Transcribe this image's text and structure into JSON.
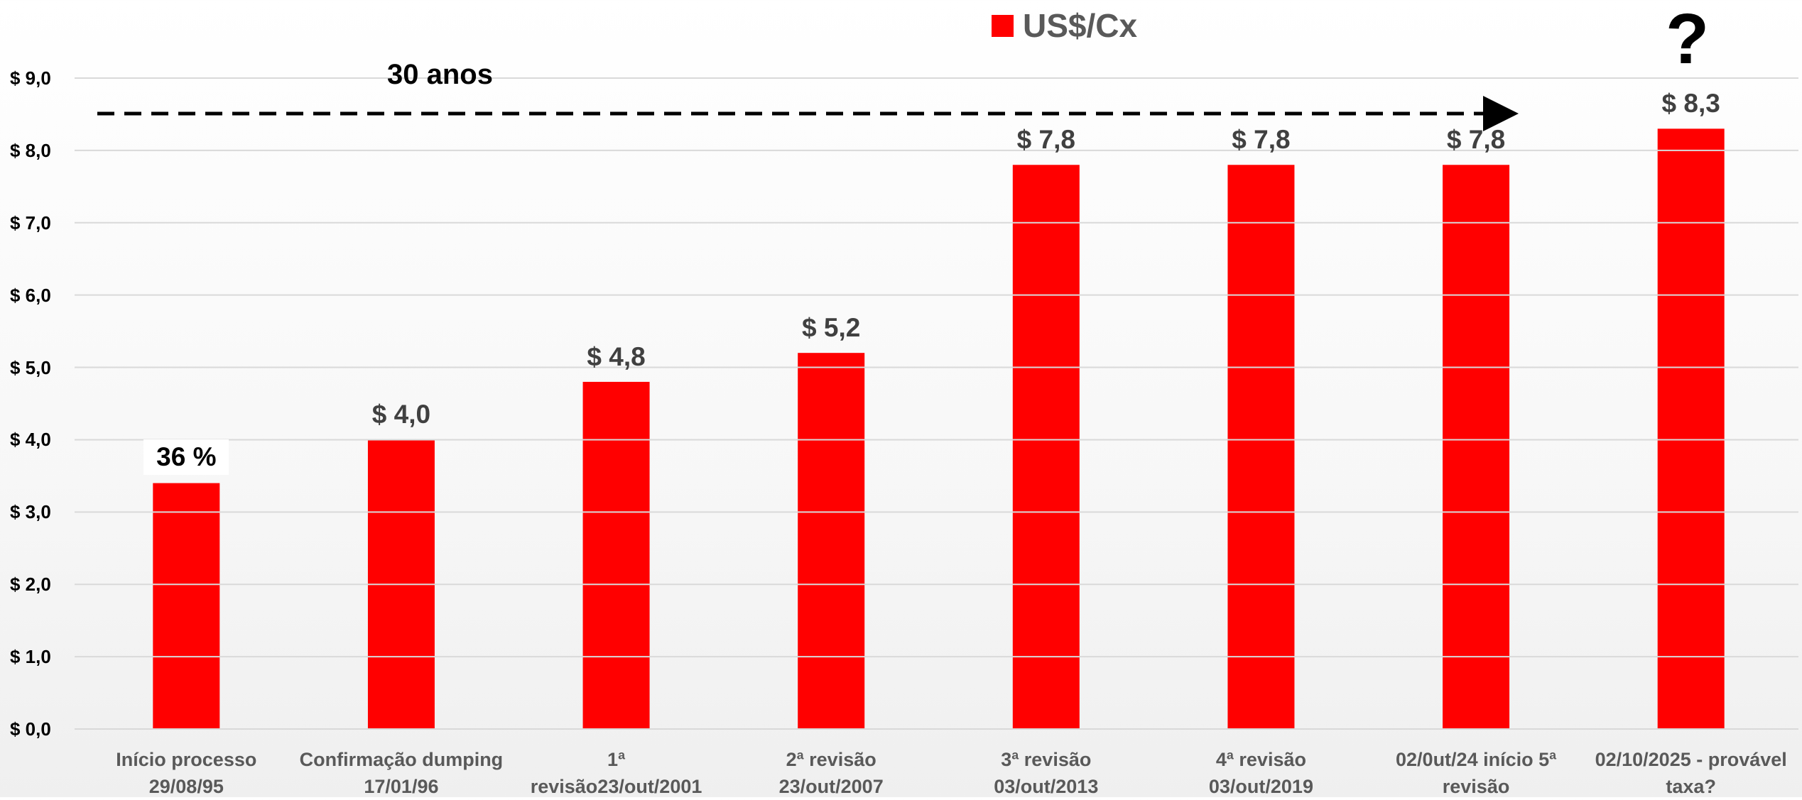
{
  "chart_data": {
    "type": "bar",
    "legend": "US$/Cx",
    "color": "#ff0000",
    "categories": [
      "Início processo\n29/08/95",
      "Confirmação dumping\n17/01/96",
      "1ª\nrevisão23/out/2001",
      "2ª revisão\n23/out/2007",
      "3ª revisão\n03/out/2013",
      "4ª revisão\n03/out/2019",
      "02/0ut/24 início 5ª\nrevisão",
      "02/10/2025 - provável\ntaxa?"
    ],
    "values": [
      3.4,
      4.0,
      4.8,
      5.2,
      7.8,
      7.8,
      7.8,
      8.3
    ],
    "value_labels": [
      null,
      "$ 4,0",
      "$ 4,8",
      "$ 5,2",
      "$ 7,8",
      "$ 7,8",
      "$ 7,8",
      "$ 8,3"
    ],
    "annotations": [
      "36 %",
      "30 anos",
      "?"
    ],
    "ylim": [
      0,
      9
    ],
    "yticks": [
      {
        "value": 0,
        "label": "$ 0,0"
      },
      {
        "value": 1,
        "label": "$ 1,0"
      },
      {
        "value": 2,
        "label": "$ 2,0"
      },
      {
        "value": 3,
        "label": "$ 3,0"
      },
      {
        "value": 4,
        "label": "$ 4,0"
      },
      {
        "value": 5,
        "label": "$ 5,0"
      },
      {
        "value": 6,
        "label": "$ 6,0"
      },
      {
        "value": 7,
        "label": "$ 7,0"
      },
      {
        "value": 8,
        "label": "$ 8,0"
      },
      {
        "value": 9,
        "label": "$ 9,0"
      }
    ],
    "grid": true
  }
}
